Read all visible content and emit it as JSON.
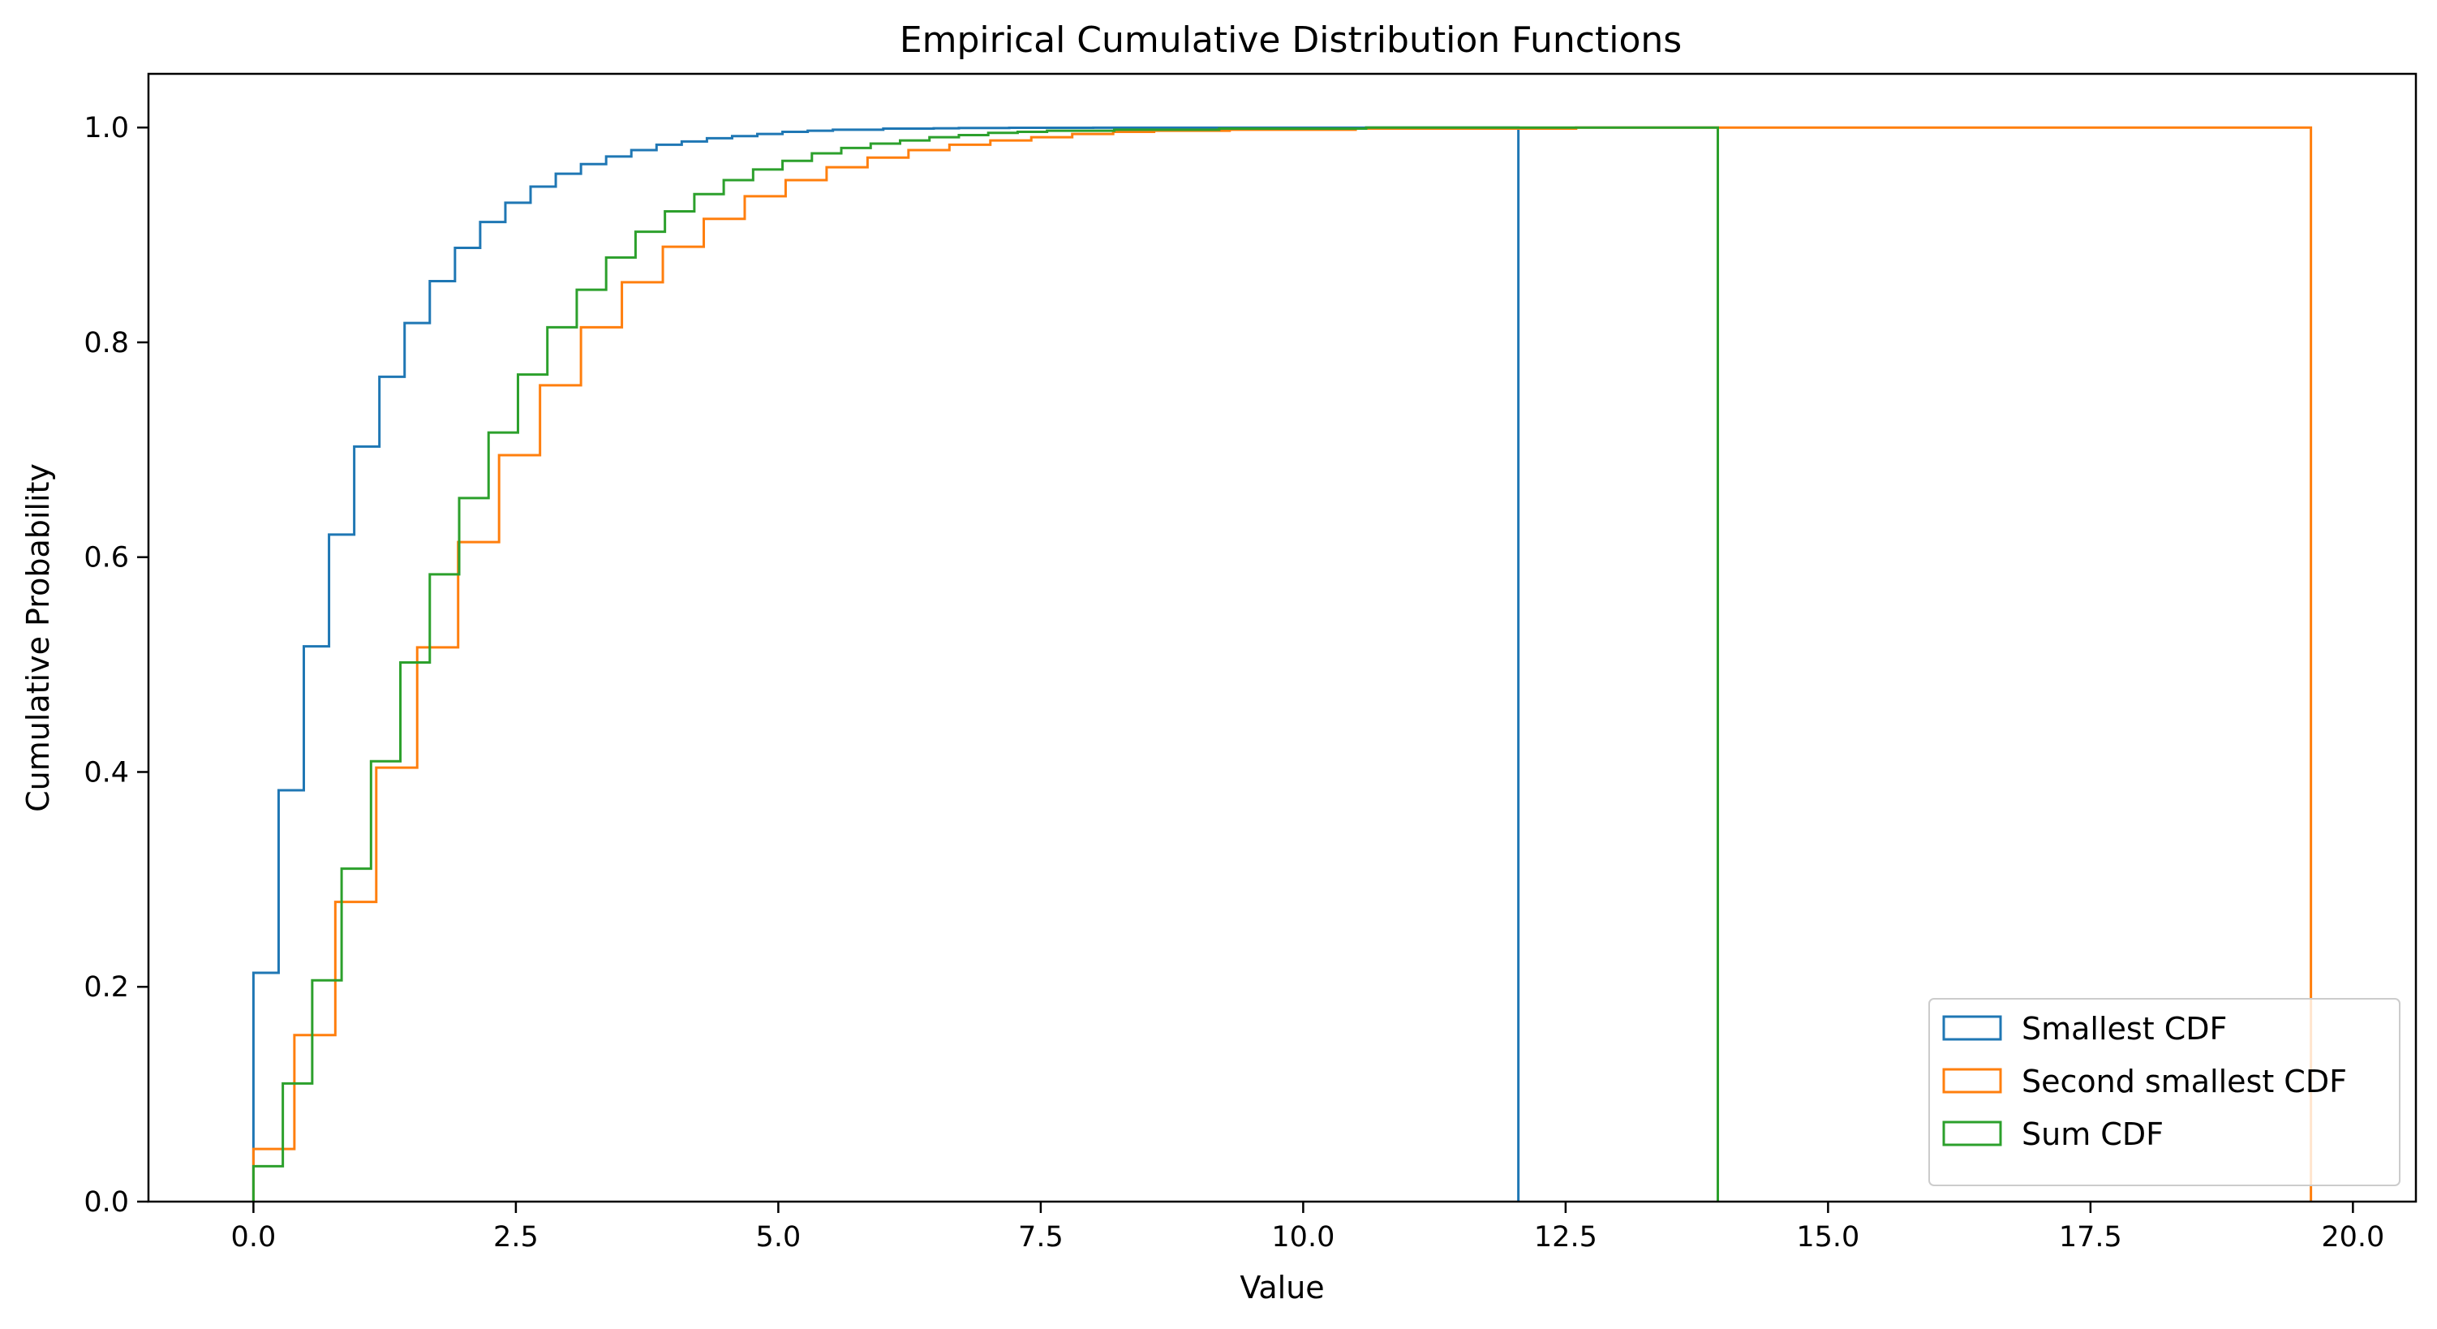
{
  "chart_data": {
    "type": "line",
    "drawstyle": "step-histogram",
    "title": "Empirical Cumulative Distribution Functions",
    "xlabel": "Value",
    "ylabel": "Cumulative Probability",
    "xlim": [
      -1.0,
      20.6
    ],
    "ylim": [
      0.0,
      1.05
    ],
    "x_ticks": [
      0.0,
      2.5,
      5.0,
      7.5,
      10.0,
      12.5,
      15.0,
      17.5,
      20.0
    ],
    "x_tick_labels": [
      "0.0",
      "2.5",
      "5.0",
      "7.5",
      "10.0",
      "12.5",
      "15.0",
      "17.5",
      "20.0"
    ],
    "y_ticks": [
      0.0,
      0.2,
      0.4,
      0.6,
      0.8,
      1.0
    ],
    "y_tick_labels": [
      "0.0",
      "0.2",
      "0.4",
      "0.6",
      "0.8",
      "1.0"
    ],
    "grid": false,
    "legend_position": "lower right",
    "series": [
      {
        "name": "Smallest CDF",
        "color": "#1f77b4",
        "x_end": 12.05,
        "x": [
          0.0,
          0.24,
          0.48,
          0.72,
          0.96,
          1.2,
          1.44,
          1.68,
          1.92,
          2.16,
          2.4,
          2.64,
          2.88,
          3.12,
          3.36,
          3.6,
          3.84,
          4.08,
          4.32,
          4.56,
          4.8,
          5.04,
          5.28,
          5.52,
          5.76,
          6.0,
          6.24,
          6.48,
          6.72,
          7.2,
          8.0,
          10.6
        ],
        "y": [
          0.213,
          0.383,
          0.517,
          0.621,
          0.703,
          0.768,
          0.818,
          0.857,
          0.888,
          0.912,
          0.93,
          0.945,
          0.957,
          0.966,
          0.973,
          0.979,
          0.984,
          0.987,
          0.99,
          0.992,
          0.994,
          0.996,
          0.997,
          0.998,
          0.998,
          0.999,
          0.999,
          0.9993,
          0.9996,
          0.9998,
          0.9999,
          1.0
        ]
      },
      {
        "name": "Second smallest CDF",
        "color": "#ff7f0e",
        "x_end": 19.6,
        "x": [
          0.0,
          0.39,
          0.78,
          1.17,
          1.56,
          1.95,
          2.34,
          2.73,
          3.12,
          3.51,
          3.9,
          4.29,
          4.68,
          5.07,
          5.46,
          5.85,
          6.24,
          6.63,
          7.02,
          7.41,
          7.8,
          8.19,
          8.58,
          9.3,
          10.5,
          12.6
        ],
        "y": [
          0.049,
          0.155,
          0.279,
          0.404,
          0.516,
          0.614,
          0.695,
          0.76,
          0.814,
          0.856,
          0.889,
          0.915,
          0.936,
          0.951,
          0.963,
          0.972,
          0.979,
          0.984,
          0.988,
          0.991,
          0.994,
          0.996,
          0.997,
          0.998,
          0.999,
          1.0
        ]
      },
      {
        "name": "Sum CDF",
        "color": "#2ca02c",
        "x_end": 13.95,
        "x": [
          0.0,
          0.28,
          0.56,
          0.84,
          1.12,
          1.4,
          1.68,
          1.96,
          2.24,
          2.52,
          2.8,
          3.08,
          3.36,
          3.64,
          3.92,
          4.2,
          4.48,
          4.76,
          5.04,
          5.32,
          5.6,
          5.88,
          6.16,
          6.44,
          6.72,
          7.0,
          7.28,
          7.56,
          8.2,
          9.2,
          10.6
        ],
        "y": [
          0.033,
          0.11,
          0.206,
          0.31,
          0.41,
          0.502,
          0.584,
          0.655,
          0.716,
          0.77,
          0.814,
          0.849,
          0.879,
          0.903,
          0.922,
          0.938,
          0.951,
          0.961,
          0.969,
          0.976,
          0.981,
          0.985,
          0.988,
          0.991,
          0.993,
          0.995,
          0.996,
          0.997,
          0.998,
          0.999,
          1.0
        ]
      }
    ]
  }
}
